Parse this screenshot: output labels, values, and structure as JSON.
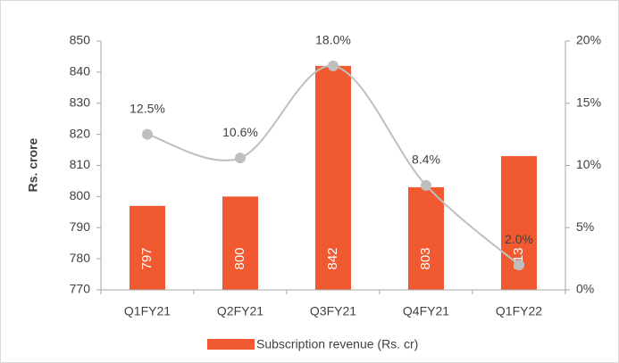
{
  "chart_data": {
    "type": "bar",
    "y_label": "Rs. crore",
    "categories": [
      "Q1FY21",
      "Q2FY21",
      "Q3FY21",
      "Q4FY21",
      "Q1FY22"
    ],
    "series": [
      {
        "name": "Subscription revenue (Rs. cr)",
        "type": "bar",
        "color": "#f15a31",
        "values": [
          797,
          800,
          842,
          803,
          813
        ]
      },
      {
        "type": "line",
        "axis": "y2",
        "color": "#bfbfbf",
        "values": [
          12.5,
          10.6,
          18.0,
          8.4,
          2.0
        ],
        "value_labels": [
          "12.5%",
          "10.6%",
          "18.0%",
          "8.4%",
          "2.0%"
        ]
      }
    ],
    "ylim": [
      770,
      850
    ],
    "yticks": [
      770,
      780,
      790,
      800,
      810,
      820,
      830,
      840,
      850
    ],
    "y2lim": [
      0,
      20
    ],
    "y2ticks": [
      {
        "value": 0,
        "label": "0%"
      },
      {
        "value": 5,
        "label": "5%"
      },
      {
        "value": 10,
        "label": "10%"
      },
      {
        "value": 15,
        "label": "15%"
      },
      {
        "value": 20,
        "label": "20%"
      }
    ],
    "legend": "bottom"
  }
}
